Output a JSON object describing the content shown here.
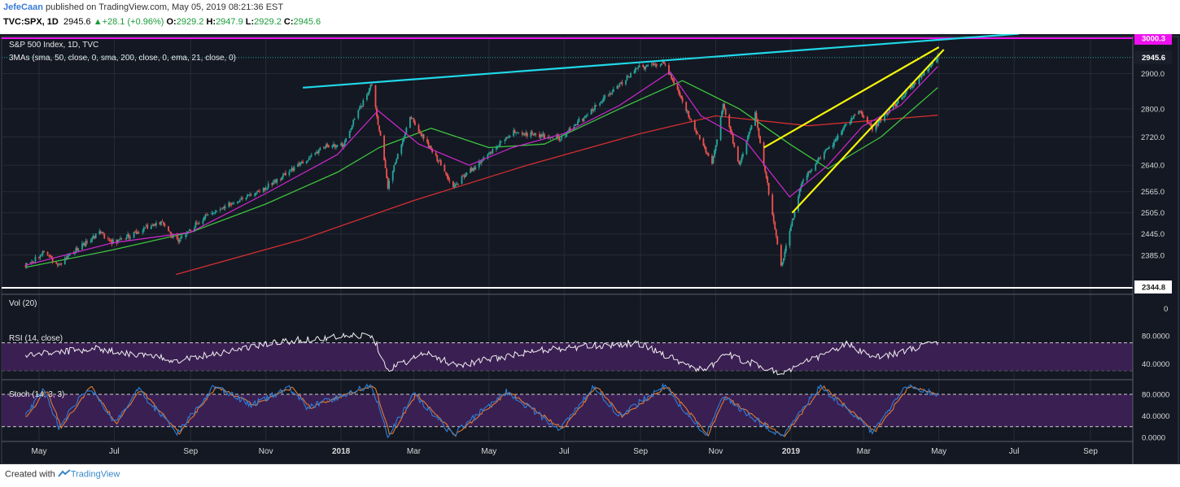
{
  "header": {
    "author": "JefeCaan",
    "published_text": "published on TradingView.com, May 05, 2019 08:21:36 EST",
    "symbol": "TVC:SPX, 1D",
    "last": "2945.6",
    "change_arrow": "▲",
    "change": "+28.1 (+0.96%)",
    "o_label": "O:",
    "o_value": "2929.2",
    "h_label": "H:",
    "h_value": "2947.9",
    "l_label": "L:",
    "l_value": "2929.2",
    "c_label": "C:",
    "c_value": "2945.6"
  },
  "panes": {
    "main_title": "S&P 500 Index, 1D, TVC",
    "mas_label": "3MAs (sma, 50, close, 0, sma, 200, close, 0, ema, 21, close, 0)",
    "vol_label": "Vol (20)",
    "rsi_label": "RSI (14, close)",
    "stoch_label": "Stoch (14, 3, 3)"
  },
  "footer": {
    "created_with": "Created with",
    "brand": "TradingView"
  },
  "colors": {
    "background": "#141823",
    "up": "#26a69a",
    "down": "#ef5350",
    "sma50": "#3ec43e",
    "sma200": "#d32f2f",
    "ema21": "#d028d0",
    "resistance": "#ee10ee",
    "trendline": "#20d8e8",
    "wedge": "#f5f50a",
    "rsi_band": "#3a1f52",
    "stoch_k": "#2b7fd8",
    "stoch_d": "#e37a2e"
  },
  "chart_data": {
    "type": "candlestick",
    "title": "S&P 500 Index, 1D, TVC",
    "price_axis": {
      "ticks": [
        "2900.0",
        "2800.0",
        "2720.0",
        "2640.0",
        "2565.0",
        "2505.0",
        "2445.0",
        "2385.0"
      ],
      "range": [
        2344.8,
        3000
      ]
    },
    "price_tags": [
      {
        "label": "3000.3",
        "value": 3000.3,
        "color": "#ee10ee"
      },
      {
        "label": "2945.6",
        "value": 2945.6,
        "color": "#1b1f2a"
      },
      {
        "label": "2344.8",
        "value": 2344.8,
        "color": "#ffffff"
      }
    ],
    "x_axis": {
      "ticks": [
        "May",
        "Jul",
        "Sep",
        "Nov",
        "2018",
        "Mar",
        "May",
        "Jul",
        "Sep",
        "Nov",
        "2019",
        "Mar",
        "May",
        "Jul",
        "Sep"
      ]
    },
    "price_path": [
      [
        "2017-04-20",
        2355
      ],
      [
        "2017-05-05",
        2395
      ],
      [
        "2017-05-17",
        2357
      ],
      [
        "2017-06-19",
        2453
      ],
      [
        "2017-06-29",
        2419
      ],
      [
        "2017-08-08",
        2480
      ],
      [
        "2017-08-21",
        2426
      ],
      [
        "2017-09-15",
        2500
      ],
      [
        "2017-10-31",
        2575
      ],
      [
        "2017-12-18",
        2690
      ],
      [
        "2018-01-02",
        2695
      ],
      [
        "2018-01-26",
        2872
      ],
      [
        "2018-02-08",
        2581
      ],
      [
        "2018-02-26",
        2779
      ],
      [
        "2018-04-02",
        2581
      ],
      [
        "2018-05-21",
        2733
      ],
      [
        "2018-06-28",
        2716
      ],
      [
        "2018-08-29",
        2914
      ],
      [
        "2018-09-20",
        2931
      ],
      [
        "2018-10-10",
        2785
      ],
      [
        "2018-10-29",
        2641
      ],
      [
        "2018-11-07",
        2813
      ],
      [
        "2018-11-20",
        2641
      ],
      [
        "2018-12-03",
        2790
      ],
      [
        "2018-12-24",
        2351
      ],
      [
        "2019-01-10",
        2596
      ],
      [
        "2019-02-25",
        2796
      ],
      [
        "2019-03-08",
        2743
      ],
      [
        "2019-04-30",
        2945.6
      ]
    ],
    "series": [
      {
        "name": "sma 50",
        "values": [
          [
            "2017-04-20",
            2350
          ],
          [
            "2017-06-30",
            2400
          ],
          [
            "2017-09-01",
            2450
          ],
          [
            "2017-11-01",
            2530
          ],
          [
            "2017-12-29",
            2620
          ],
          [
            "2018-02-01",
            2690
          ],
          [
            "2018-03-15",
            2745
          ],
          [
            "2018-05-01",
            2690
          ],
          [
            "2018-06-15",
            2700
          ],
          [
            "2018-08-15",
            2800
          ],
          [
            "2018-10-05",
            2880
          ],
          [
            "2018-11-20",
            2800
          ],
          [
            "2018-12-31",
            2700
          ],
          [
            "2019-01-31",
            2630
          ],
          [
            "2019-03-15",
            2720
          ],
          [
            "2019-04-30",
            2860
          ]
        ]
      },
      {
        "name": "sma 200",
        "values": [
          [
            "2017-08-20",
            2330
          ],
          [
            "2017-12-01",
            2430
          ],
          [
            "2018-03-01",
            2540
          ],
          [
            "2018-06-01",
            2640
          ],
          [
            "2018-09-01",
            2730
          ],
          [
            "2018-11-01",
            2780
          ],
          [
            "2019-01-15",
            2752
          ],
          [
            "2019-04-30",
            2782
          ]
        ]
      },
      {
        "name": "ema 21",
        "values": [
          [
            "2017-04-20",
            2356
          ],
          [
            "2017-06-30",
            2420
          ],
          [
            "2017-09-01",
            2450
          ],
          [
            "2017-11-01",
            2560
          ],
          [
            "2017-12-29",
            2670
          ],
          [
            "2018-01-31",
            2795
          ],
          [
            "2018-03-05",
            2700
          ],
          [
            "2018-04-15",
            2640
          ],
          [
            "2018-05-20",
            2690
          ],
          [
            "2018-07-01",
            2730
          ],
          [
            "2018-08-15",
            2810
          ],
          [
            "2018-09-25",
            2905
          ],
          [
            "2018-10-20",
            2780
          ],
          [
            "2018-11-25",
            2710
          ],
          [
            "2018-12-31",
            2550
          ],
          [
            "2019-01-31",
            2640
          ],
          [
            "2019-02-28",
            2750
          ],
          [
            "2019-03-31",
            2810
          ],
          [
            "2019-04-30",
            2920
          ]
        ]
      }
    ],
    "drawings": [
      {
        "name": "resistance",
        "kind": "horizontal",
        "value": 3000.3
      },
      {
        "name": "upper trendline",
        "kind": "line",
        "from": [
          "2017-12-01",
          2860
        ],
        "to": [
          "2019-07-05",
          3013
        ]
      },
      {
        "name": "wedge upper",
        "kind": "line",
        "from": [
          "2018-12-10",
          2690
        ],
        "to": [
          "2019-05-01",
          2975
        ]
      },
      {
        "name": "wedge lower",
        "kind": "line",
        "from": [
          "2019-01-02",
          2505
        ],
        "to": [
          "2019-05-05",
          2968
        ]
      }
    ],
    "volume": {
      "axis_ticks": [
        "0"
      ]
    },
    "rsi": {
      "axis_ticks": [
        "80.0000",
        "40.0000"
      ],
      "band": [
        30,
        70
      ],
      "values": [
        [
          "2017-04-20",
          52
        ],
        [
          "2017-06-15",
          62
        ],
        [
          "2017-08-20",
          45
        ],
        [
          "2017-11-15",
          72
        ],
        [
          "2018-01-26",
          82
        ],
        [
          "2018-02-08",
          32
        ],
        [
          "2018-03-10",
          55
        ],
        [
          "2018-04-05",
          38
        ],
        [
          "2018-06-15",
          60
        ],
        [
          "2018-08-29",
          70
        ],
        [
          "2018-10-24",
          28
        ],
        [
          "2018-11-07",
          55
        ],
        [
          "2018-12-24",
          26
        ],
        [
          "2019-02-15",
          68
        ],
        [
          "2019-03-10",
          48
        ],
        [
          "2019-04-30",
          70
        ]
      ]
    },
    "stoch": {
      "axis_ticks": [
        "80.0000",
        "40.0000",
        "0.0000"
      ],
      "band": [
        20,
        80
      ],
      "values": [
        [
          "2017-04-20",
          40
        ],
        [
          "2017-05-05",
          90
        ],
        [
          "2017-05-17",
          20
        ],
        [
          "2017-06-10",
          95
        ],
        [
          "2017-07-01",
          25
        ],
        [
          "2017-07-20",
          90
        ],
        [
          "2017-08-21",
          8
        ],
        [
          "2017-09-20",
          95
        ],
        [
          "2017-10-20",
          60
        ],
        [
          "2017-11-20",
          92
        ],
        [
          "2017-12-05",
          55
        ],
        [
          "2018-01-26",
          98
        ],
        [
          "2018-02-08",
          2
        ],
        [
          "2018-03-01",
          80
        ],
        [
          "2018-04-02",
          5
        ],
        [
          "2018-05-15",
          85
        ],
        [
          "2018-06-28",
          15
        ],
        [
          "2018-07-25",
          95
        ],
        [
          "2018-08-15",
          40
        ],
        [
          "2018-09-20",
          95
        ],
        [
          "2018-10-24",
          5
        ],
        [
          "2018-11-07",
          75
        ],
        [
          "2018-12-24",
          2
        ],
        [
          "2019-01-25",
          95
        ],
        [
          "2019-03-08",
          10
        ],
        [
          "2019-04-05",
          95
        ],
        [
          "2019-04-30",
          80
        ]
      ]
    }
  }
}
